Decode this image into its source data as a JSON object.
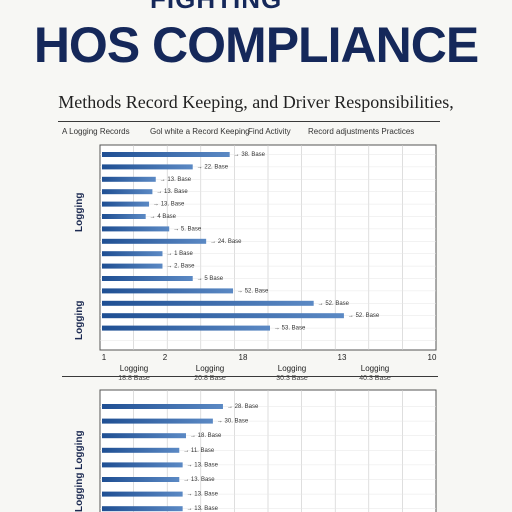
{
  "header": {
    "cropped_text": "FIGHTING",
    "title": "HOS COMPLIANCE",
    "subtitle": "Methods Record Keeping, and Driver Responsibilities,"
  },
  "legend": {
    "items": [
      "A Logging Records",
      "Gol white a Record Keeping",
      "Find Activity",
      "Record adjustments Practices"
    ]
  },
  "summary_labels": [
    {
      "label": "Logging",
      "value": "18.8 Base"
    },
    {
      "label": "Logging",
      "value": "20.8 Base"
    },
    {
      "label": "Logging",
      "value": "30.3 Base"
    },
    {
      "label": "Logging",
      "value": "40.3 Base"
    }
  ],
  "colors": {
    "bar_light": "#5b89c4",
    "bar_dark": "#1f4f93",
    "grid": "#c8c8c8",
    "frame": "#555555"
  },
  "chart_data": [
    {
      "type": "bar",
      "orientation": "horizontal",
      "ylabel": "Logging",
      "xticks": [
        "1",
        "2",
        "18",
        "13",
        "10"
      ],
      "xlim": [
        0,
        100
      ],
      "bars": [
        {
          "value": 38,
          "label": "38. Base"
        },
        {
          "value": 27,
          "label": "22. Base"
        },
        {
          "value": 16,
          "label": "13. Base"
        },
        {
          "value": 15,
          "label": "13. Base"
        },
        {
          "value": 14,
          "label": "13. Base"
        },
        {
          "value": 13,
          "label": "4 Base"
        },
        {
          "value": 20,
          "label": "5. Base"
        },
        {
          "value": 31,
          "label": "24. Base"
        },
        {
          "value": 18,
          "label": "1 Base"
        },
        {
          "value": 18,
          "label": "2. Base"
        },
        {
          "value": 27,
          "label": "5 Base"
        },
        {
          "value": 39,
          "label": "52. Base"
        },
        {
          "value": 63,
          "label": "52. Base"
        },
        {
          "value": 72,
          "label": "52. Base"
        },
        {
          "value": 50,
          "label": "53. Base"
        }
      ]
    },
    {
      "type": "bar",
      "orientation": "horizontal",
      "ylabel": "Logging Logging",
      "xlim": [
        0,
        100
      ],
      "bars": [
        {
          "value": 36,
          "label": "28. Base"
        },
        {
          "value": 33,
          "label": "30. Base"
        },
        {
          "value": 25,
          "label": "18. Base"
        },
        {
          "value": 23,
          "label": "11. Base"
        },
        {
          "value": 24,
          "label": "13. Base"
        },
        {
          "value": 23,
          "label": "13. Base"
        },
        {
          "value": 24,
          "label": "13. Base"
        },
        {
          "value": 24,
          "label": "13. Base"
        }
      ]
    }
  ]
}
